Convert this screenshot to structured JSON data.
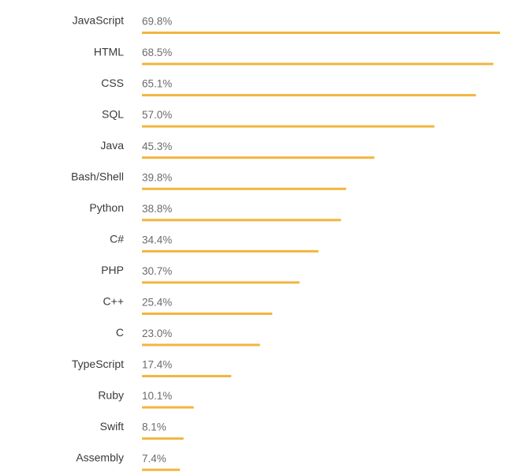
{
  "chart_data": {
    "type": "bar",
    "orientation": "horizontal",
    "categories": [
      "JavaScript",
      "HTML",
      "CSS",
      "SQL",
      "Java",
      "Bash/Shell",
      "Python",
      "C#",
      "PHP",
      "C++",
      "C",
      "TypeScript",
      "Ruby",
      "Swift",
      "Assembly"
    ],
    "values": [
      69.8,
      68.5,
      65.1,
      57.0,
      45.3,
      39.8,
      38.8,
      34.4,
      30.7,
      25.4,
      23.0,
      17.4,
      10.1,
      8.1,
      7.4
    ],
    "value_labels": [
      "69.8%",
      "68.5%",
      "65.1%",
      "57.0%",
      "45.3%",
      "39.8%",
      "38.8%",
      "34.4%",
      "30.7%",
      "25.4%",
      "23.0%",
      "17.4%",
      "10.1%",
      "8.1%",
      "7.4%"
    ],
    "color": "#f2b53f"
  }
}
